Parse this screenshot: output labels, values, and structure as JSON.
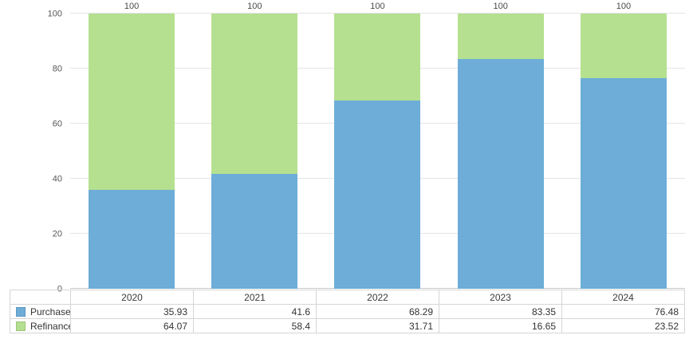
{
  "chart_data": {
    "type": "bar",
    "variant": "stacked-100-percent-column",
    "title": "",
    "categories": [
      "2020",
      "2021",
      "2022",
      "2023",
      "2024"
    ],
    "series": [
      {
        "name": "Purchase",
        "color": "#6dadd8",
        "values": [
          "35.93",
          "41.6",
          "68.29",
          "83.35",
          "76.48"
        ]
      },
      {
        "name": "Refinance",
        "color": "#b5e08f",
        "values": [
          "64.07",
          "58.4",
          "31.71",
          "16.65",
          "23.52"
        ]
      }
    ],
    "bar_total_labels": [
      "100",
      "100",
      "100",
      "100",
      "100"
    ],
    "y_axis": {
      "min": 0,
      "max": 100,
      "ticks": [
        0,
        20,
        40,
        60,
        80,
        100
      ]
    },
    "grid": true,
    "legend_position": "table-below-chart"
  },
  "colors": {
    "background": "#ffffff",
    "gridline": "#e4e4e4",
    "axis_line": "#c9c9c9",
    "table_border": "#d6d6d6",
    "table_text": "#333333",
    "axis_label_text": "#565656",
    "total_label_text": "#4a4a4a"
  }
}
